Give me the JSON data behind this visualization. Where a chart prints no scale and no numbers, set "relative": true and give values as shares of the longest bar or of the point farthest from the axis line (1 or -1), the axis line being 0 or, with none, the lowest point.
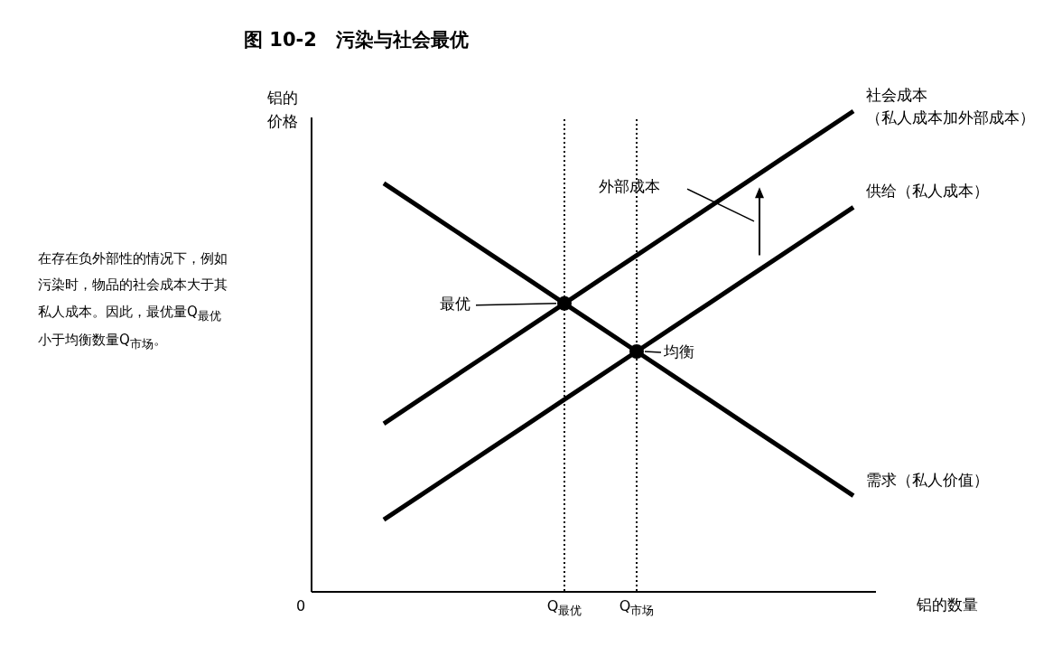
{
  "chart_data": {
    "type": "line",
    "title": "图 10-2　污染与社会最优",
    "xlabel": "铝的数量",
    "ylabel": "铝的价格",
    "relative": true,
    "categories": [
      "0",
      null,
      null,
      null,
      null,
      null,
      null,
      "Q$_{最优}$",
      null,
      "Q$_{市场}$",
      null,
      null,
      null,
      null,
      null,
      null
    ],
    "series": [
      {
        "name": "社会成本（私人成本加外部成本）",
        "color": "#000000",
        "values": [
          null,
          null,
          0.35,
          0.4,
          0.45,
          0.5,
          0.55,
          0.6,
          0.65,
          0.7,
          0.75,
          0.8,
          0.85,
          0.9,
          0.95,
          1.0
        ]
      },
      {
        "name": "供给（私人成本）",
        "color": "#000000",
        "values": [
          null,
          null,
          0.15,
          0.2,
          0.25,
          0.3,
          0.35,
          0.4,
          0.45,
          0.5,
          0.55,
          0.6,
          0.65,
          0.7,
          0.75,
          0.8
        ]
      },
      {
        "name": "需求（私人价值）",
        "color": "#000000",
        "values": [
          null,
          null,
          0.85,
          0.8,
          0.75,
          0.7,
          0.65,
          0.6,
          0.55,
          0.5,
          0.45,
          0.4,
          0.35,
          0.3,
          0.25,
          0.2
        ]
      },
      {
        "type": "scatter",
        "marker": "circle",
        "color": "#000000",
        "values": [
          null,
          null,
          null,
          null,
          null,
          null,
          null,
          0.6,
          null,
          0.5,
          null,
          null,
          null,
          null,
          null,
          null
        ]
      }
    ],
    "ref_lines": [
      {
        "axis": "x",
        "value": "Q$_{最优}$",
        "line_style": "dotted",
        "color": "#000000"
      },
      {
        "axis": "x",
        "value": "Q$_{市场}$",
        "line_style": "dotted",
        "color": "#000000"
      }
    ],
    "annotations": [
      {
        "text": "最优",
        "x": "Q$_{最优}$",
        "y": 0.6
      },
      {
        "text": "均衡",
        "x": "Q$_{市场}$",
        "y": 0.5
      },
      "外部成本",
      "在存在负外部性的情况下，例如污染时，物品的社会成本大于其私人成本。因此，最优量Q$_{最优}$小于均衡数量Q$_{市场}$。"
    ]
  }
}
